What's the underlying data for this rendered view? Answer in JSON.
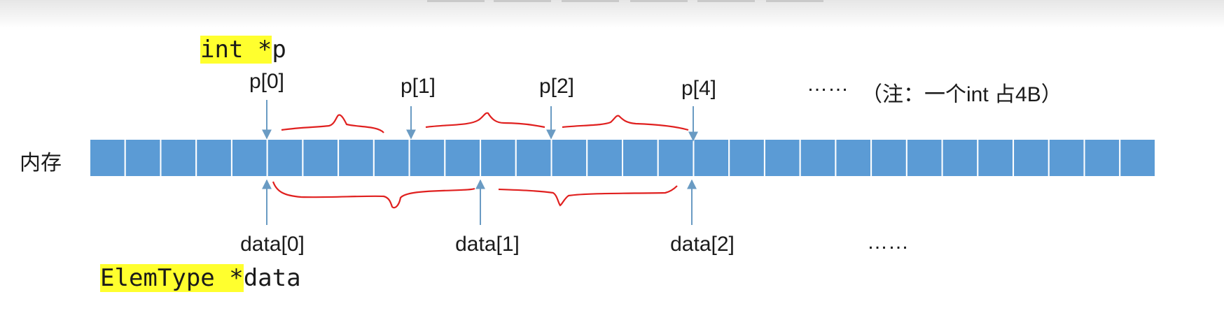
{
  "decl_pointer": {
    "type_part": "int *",
    "name_part": "p"
  },
  "decl_array": {
    "type_part": "ElemType *",
    "name_part": "data"
  },
  "memory_label": "内存",
  "p_labels": [
    "p[0]",
    "p[1]",
    "p[2]",
    "p[4]"
  ],
  "data_labels": [
    "data[0]",
    "data[1]",
    "data[2]"
  ],
  "ellipsis_top": "……",
  "ellipsis_bottom": "……",
  "note": "（注：一个int 占4B）",
  "colors": {
    "cell_fill": "#5b9bd5",
    "cell_border": "#ffffff",
    "arrow": "#6a9bc3",
    "brace": "#e0201f",
    "highlight": "#ffff2e"
  }
}
